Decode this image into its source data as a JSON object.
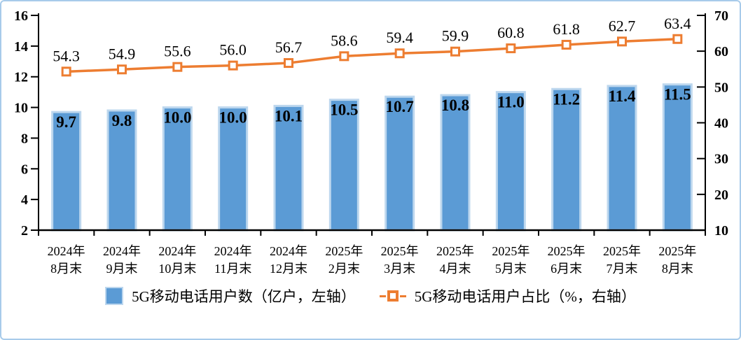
{
  "chart_data": {
    "type": "combo",
    "title": "",
    "categories": [
      [
        "2024年",
        "8月末"
      ],
      [
        "2024年",
        "9月末"
      ],
      [
        "2024年",
        "10月末"
      ],
      [
        "2024年",
        "11月末"
      ],
      [
        "2024年",
        "12月末"
      ],
      [
        "2025年",
        "2月末"
      ],
      [
        "2025年",
        "3月末"
      ],
      [
        "2025年",
        "4月末"
      ],
      [
        "2025年",
        "5月末"
      ],
      [
        "2025年",
        "6月末"
      ],
      [
        "2025年",
        "7月末"
      ],
      [
        "2025年",
        "8月末"
      ]
    ],
    "series": [
      {
        "name": "5G移动电话用户数（亿户，左轴）",
        "type": "bar",
        "axis": "left",
        "values": [
          9.7,
          9.8,
          10.0,
          10.0,
          10.1,
          10.5,
          10.7,
          10.8,
          11.0,
          11.2,
          11.4,
          11.5
        ],
        "value_labels": [
          "9.7",
          "9.8",
          "10.0",
          "10.0",
          "10.1",
          "10.5",
          "10.7",
          "10.8",
          "11.0",
          "11.2",
          "11.4",
          "11.5"
        ],
        "fill": "#5B9BD5",
        "edge": "#BDD7EE"
      },
      {
        "name": "5G移动电话用户占比（%，右轴）",
        "type": "line",
        "axis": "right",
        "values": [
          54.3,
          54.9,
          55.6,
          56.0,
          56.7,
          58.6,
          59.4,
          59.9,
          60.8,
          61.8,
          62.7,
          63.4
        ],
        "value_labels": [
          "54.3",
          "54.9",
          "55.6",
          "56.0",
          "56.7",
          "58.6",
          "59.4",
          "59.9",
          "60.8",
          "61.8",
          "62.7",
          "63.4"
        ],
        "color": "#ED7D31",
        "marker_fill": "#FFFFFF"
      }
    ],
    "left_axis": {
      "min": 2,
      "max": 16,
      "step": 2,
      "ticks": [
        2,
        4,
        6,
        8,
        10,
        12,
        14,
        16
      ]
    },
    "right_axis": {
      "min": 10,
      "max": 70,
      "step": 10,
      "ticks": [
        10,
        20,
        30,
        40,
        50,
        60,
        70
      ]
    },
    "grid": false,
    "legend_position": "bottom",
    "xlabel": "",
    "ylabel_left": "亿户",
    "ylabel_right": "%"
  },
  "frame": {
    "border_color": "#A8CBEA",
    "background": "#FFFFFF",
    "axis_color": "#000000",
    "text_color": "#000000"
  }
}
